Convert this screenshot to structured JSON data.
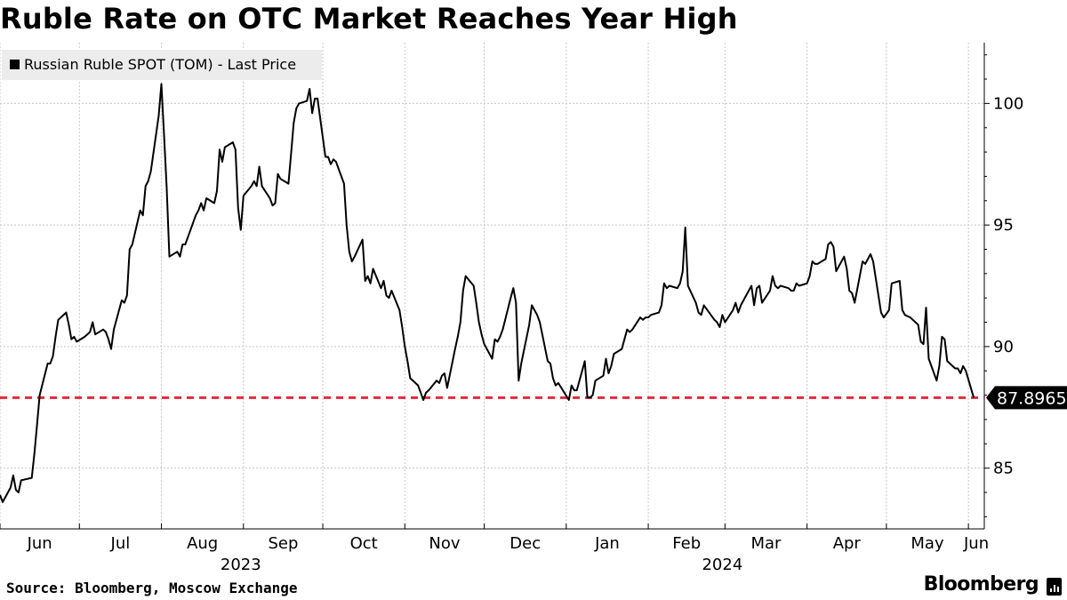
{
  "header": {
    "title": "Ruble Rate on OTC Market Reaches Year High"
  },
  "footer": {
    "source": "Source: Bloomberg, Moscow Exchange",
    "brand": "Bloomberg"
  },
  "chart_data": {
    "type": "line",
    "title": "Ruble Rate on OTC Market Reaches Year High",
    "xlabel": "",
    "ylabel": "",
    "legend": [
      "Russian Ruble SPOT (TOM) - Last Price"
    ],
    "legend_position": "top-left",
    "grid": true,
    "ylim": [
      82.5,
      102.5
    ],
    "yticks": [
      85,
      90,
      95,
      100
    ],
    "xlim": [
      "2023-06-01",
      "2024-06-07"
    ],
    "month_ticks": [
      {
        "date": "2023-06-01",
        "label": "Jun"
      },
      {
        "date": "2023-07-01",
        "label": "Jul"
      },
      {
        "date": "2023-08-01",
        "label": "Aug"
      },
      {
        "date": "2023-09-01",
        "label": "Sep"
      },
      {
        "date": "2023-10-01",
        "label": "Oct"
      },
      {
        "date": "2023-11-01",
        "label": "Nov"
      },
      {
        "date": "2023-12-01",
        "label": "Dec"
      },
      {
        "date": "2024-01-01",
        "label": "Jan"
      },
      {
        "date": "2024-02-01",
        "label": "Feb"
      },
      {
        "date": "2024-03-01",
        "label": "Mar"
      },
      {
        "date": "2024-04-01",
        "label": "Apr"
      },
      {
        "date": "2024-05-01",
        "label": "May"
      },
      {
        "date": "2024-06-01",
        "label": "Jun"
      }
    ],
    "year_labels": [
      {
        "date": "2023-08-31",
        "label": "2023"
      },
      {
        "date": "2024-02-29",
        "label": "2024"
      }
    ],
    "reference_line": {
      "value": 87.8965,
      "label": "87.8965",
      "color": "#e8283a",
      "style": "dashed"
    },
    "series": [
      {
        "name": "Russian Ruble SPOT (TOM) - Last Price",
        "color": "#000000",
        "points": [
          [
            "2023-06-01",
            83.9
          ],
          [
            "2023-06-02",
            83.6
          ],
          [
            "2023-06-05",
            84.2
          ],
          [
            "2023-06-06",
            84.7
          ],
          [
            "2023-06-07",
            84.1
          ],
          [
            "2023-06-08",
            84.0
          ],
          [
            "2023-06-09",
            84.5
          ],
          [
            "2023-06-13",
            84.6
          ],
          [
            "2023-06-14",
            85.6
          ],
          [
            "2023-06-15",
            86.8
          ],
          [
            "2023-06-16",
            88.0
          ],
          [
            "2023-06-19",
            89.3
          ],
          [
            "2023-06-20",
            89.3
          ],
          [
            "2023-06-21",
            89.6
          ],
          [
            "2023-06-22",
            90.4
          ],
          [
            "2023-06-23",
            91.1
          ],
          [
            "2023-06-26",
            91.4
          ],
          [
            "2023-06-27",
            90.9
          ],
          [
            "2023-06-28",
            90.3
          ],
          [
            "2023-06-29",
            90.4
          ],
          [
            "2023-06-30",
            90.2
          ],
          [
            "2023-07-03",
            90.4
          ],
          [
            "2023-07-04",
            90.5
          ],
          [
            "2023-07-05",
            90.6
          ],
          [
            "2023-07-06",
            91.0
          ],
          [
            "2023-07-07",
            90.5
          ],
          [
            "2023-07-10",
            90.7
          ],
          [
            "2023-07-11",
            90.6
          ],
          [
            "2023-07-12",
            90.3
          ],
          [
            "2023-07-13",
            89.9
          ],
          [
            "2023-07-14",
            90.7
          ],
          [
            "2023-07-17",
            91.9
          ],
          [
            "2023-07-18",
            91.8
          ],
          [
            "2023-07-19",
            92.1
          ],
          [
            "2023-07-20",
            94.0
          ],
          [
            "2023-07-21",
            94.2
          ],
          [
            "2023-07-24",
            95.6
          ],
          [
            "2023-07-25",
            95.4
          ],
          [
            "2023-07-26",
            96.6
          ],
          [
            "2023-07-27",
            96.8
          ],
          [
            "2023-07-28",
            97.2
          ],
          [
            "2023-07-31",
            99.5
          ],
          [
            "2023-08-01",
            100.8
          ],
          [
            "2023-08-02",
            98.7
          ],
          [
            "2023-08-03",
            96.5
          ],
          [
            "2023-08-04",
            93.7
          ],
          [
            "2023-08-07",
            93.9
          ],
          [
            "2023-08-08",
            93.7
          ],
          [
            "2023-08-09",
            94.2
          ],
          [
            "2023-08-10",
            94.2
          ],
          [
            "2023-08-11",
            94.5
          ],
          [
            "2023-08-14",
            95.4
          ],
          [
            "2023-08-15",
            95.6
          ],
          [
            "2023-08-16",
            95.9
          ],
          [
            "2023-08-17",
            95.6
          ],
          [
            "2023-08-18",
            96.1
          ],
          [
            "2023-08-21",
            95.9
          ],
          [
            "2023-08-22",
            96.4
          ],
          [
            "2023-08-23",
            98.1
          ],
          [
            "2023-08-24",
            97.6
          ],
          [
            "2023-08-25",
            98.2
          ],
          [
            "2023-08-28",
            98.4
          ],
          [
            "2023-08-29",
            98.1
          ],
          [
            "2023-08-30",
            95.7
          ],
          [
            "2023-08-31",
            94.8
          ],
          [
            "2023-09-01",
            96.2
          ],
          [
            "2023-09-04",
            96.6
          ],
          [
            "2023-09-05",
            96.8
          ],
          [
            "2023-09-06",
            96.6
          ],
          [
            "2023-09-07",
            97.4
          ],
          [
            "2023-09-08",
            96.6
          ],
          [
            "2023-09-11",
            96.1
          ],
          [
            "2023-09-12",
            95.8
          ],
          [
            "2023-09-13",
            95.9
          ],
          [
            "2023-09-14",
            97.1
          ],
          [
            "2023-09-15",
            96.9
          ],
          [
            "2023-09-18",
            96.7
          ],
          [
            "2023-09-19",
            97.9
          ],
          [
            "2023-09-20",
            99.2
          ],
          [
            "2023-09-21",
            99.8
          ],
          [
            "2023-09-22",
            100.0
          ],
          [
            "2023-09-25",
            100.1
          ],
          [
            "2023-09-26",
            100.6
          ],
          [
            "2023-09-27",
            99.6
          ],
          [
            "2023-09-28",
            100.2
          ],
          [
            "2023-09-29",
            100.2
          ],
          [
            "2023-10-02",
            97.8
          ],
          [
            "2023-10-03",
            97.8
          ],
          [
            "2023-10-04",
            97.5
          ],
          [
            "2023-10-05",
            97.7
          ],
          [
            "2023-10-06",
            97.6
          ],
          [
            "2023-10-09",
            96.7
          ],
          [
            "2023-10-10",
            95.0
          ],
          [
            "2023-10-11",
            93.9
          ],
          [
            "2023-10-12",
            93.5
          ],
          [
            "2023-10-13",
            93.7
          ],
          [
            "2023-10-16",
            94.4
          ],
          [
            "2023-10-17",
            92.7
          ],
          [
            "2023-10-18",
            92.9
          ],
          [
            "2023-10-19",
            92.6
          ],
          [
            "2023-10-20",
            93.2
          ],
          [
            "2023-10-23",
            92.4
          ],
          [
            "2023-10-24",
            92.7
          ],
          [
            "2023-10-25",
            92.1
          ],
          [
            "2023-10-26",
            92.0
          ],
          [
            "2023-10-27",
            92.3
          ],
          [
            "2023-10-30",
            91.5
          ],
          [
            "2023-10-31",
            90.8
          ],
          [
            "2023-11-01",
            90.0
          ],
          [
            "2023-11-02",
            89.4
          ],
          [
            "2023-11-03",
            88.7
          ],
          [
            "2023-11-06",
            88.4
          ],
          [
            "2023-11-07",
            88.1
          ],
          [
            "2023-11-08",
            87.8
          ],
          [
            "2023-11-09",
            88.1
          ],
          [
            "2023-11-10",
            88.2
          ],
          [
            "2023-11-13",
            88.6
          ],
          [
            "2023-11-14",
            88.5
          ],
          [
            "2023-11-15",
            88.8
          ],
          [
            "2023-11-16",
            88.9
          ],
          [
            "2023-11-17",
            88.3
          ],
          [
            "2023-11-20",
            89.9
          ],
          [
            "2023-11-21",
            90.4
          ],
          [
            "2023-11-22",
            91.0
          ],
          [
            "2023-11-23",
            92.3
          ],
          [
            "2023-11-24",
            92.9
          ],
          [
            "2023-11-27",
            92.5
          ],
          [
            "2023-11-28",
            91.8
          ],
          [
            "2023-11-29",
            91.0
          ],
          [
            "2023-11-30",
            90.5
          ],
          [
            "2023-12-01",
            90.1
          ],
          [
            "2023-12-04",
            89.5
          ],
          [
            "2023-12-05",
            90.3
          ],
          [
            "2023-12-06",
            90.2
          ],
          [
            "2023-12-07",
            90.4
          ],
          [
            "2023-12-08",
            90.7
          ],
          [
            "2023-12-11",
            92.0
          ],
          [
            "2023-12-12",
            92.4
          ],
          [
            "2023-12-13",
            91.8
          ],
          [
            "2023-12-14",
            88.6
          ],
          [
            "2023-12-15",
            89.3
          ],
          [
            "2023-12-18",
            90.9
          ],
          [
            "2023-12-19",
            91.7
          ],
          [
            "2023-12-20",
            91.5
          ],
          [
            "2023-12-21",
            91.3
          ],
          [
            "2023-12-22",
            91.0
          ],
          [
            "2023-12-25",
            89.4
          ],
          [
            "2023-12-26",
            89.3
          ],
          [
            "2023-12-27",
            88.7
          ],
          [
            "2023-12-28",
            88.4
          ],
          [
            "2023-12-29",
            88.5
          ],
          [
            "2024-01-02",
            87.8
          ],
          [
            "2024-01-03",
            88.4
          ],
          [
            "2024-01-04",
            88.2
          ],
          [
            "2024-01-05",
            88.2
          ],
          [
            "2024-01-08",
            89.4
          ],
          [
            "2024-01-09",
            87.9
          ],
          [
            "2024-01-10",
            87.9
          ],
          [
            "2024-01-11",
            88.0
          ],
          [
            "2024-01-12",
            88.6
          ],
          [
            "2024-01-15",
            88.8
          ],
          [
            "2024-01-16",
            89.5
          ],
          [
            "2024-01-17",
            88.9
          ],
          [
            "2024-01-18",
            89.2
          ],
          [
            "2024-01-19",
            89.7
          ],
          [
            "2024-01-22",
            89.9
          ],
          [
            "2024-01-23",
            90.3
          ],
          [
            "2024-01-24",
            90.7
          ],
          [
            "2024-01-25",
            90.6
          ],
          [
            "2024-01-26",
            90.7
          ],
          [
            "2024-01-29",
            91.2
          ],
          [
            "2024-01-30",
            91.1
          ],
          [
            "2024-01-31",
            91.2
          ],
          [
            "2024-02-01",
            91.2
          ],
          [
            "2024-02-02",
            91.3
          ],
          [
            "2024-02-05",
            91.4
          ],
          [
            "2024-02-06",
            91.7
          ],
          [
            "2024-02-07",
            92.6
          ],
          [
            "2024-02-08",
            92.4
          ],
          [
            "2024-02-09",
            92.5
          ],
          [
            "2024-02-12",
            92.4
          ],
          [
            "2024-02-13",
            92.6
          ],
          [
            "2024-02-14",
            93.1
          ],
          [
            "2024-02-15",
            94.9
          ],
          [
            "2024-02-16",
            92.5
          ],
          [
            "2024-02-19",
            91.8
          ],
          [
            "2024-02-20",
            91.4
          ],
          [
            "2024-02-21",
            91.3
          ],
          [
            "2024-02-22",
            91.7
          ],
          [
            "2024-02-26",
            91.1
          ],
          [
            "2024-02-27",
            91.0
          ],
          [
            "2024-02-28",
            90.8
          ],
          [
            "2024-02-29",
            91.3
          ],
          [
            "2024-03-01",
            91.0
          ],
          [
            "2024-03-04",
            91.5
          ],
          [
            "2024-03-05",
            91.8
          ],
          [
            "2024-03-06",
            91.4
          ],
          [
            "2024-03-07",
            91.7
          ],
          [
            "2024-03-11",
            92.5
          ],
          [
            "2024-03-12",
            91.7
          ],
          [
            "2024-03-13",
            92.4
          ],
          [
            "2024-03-14",
            92.5
          ],
          [
            "2024-03-15",
            91.8
          ],
          [
            "2024-03-18",
            92.3
          ],
          [
            "2024-03-19",
            92.9
          ],
          [
            "2024-03-20",
            92.5
          ],
          [
            "2024-03-21",
            92.4
          ],
          [
            "2024-03-22",
            92.5
          ],
          [
            "2024-03-25",
            92.4
          ],
          [
            "2024-03-26",
            92.3
          ],
          [
            "2024-03-27",
            92.3
          ],
          [
            "2024-03-28",
            92.6
          ],
          [
            "2024-03-29",
            92.5
          ],
          [
            "2024-04-01",
            92.6
          ],
          [
            "2024-04-02",
            92.9
          ],
          [
            "2024-04-03",
            93.5
          ],
          [
            "2024-04-04",
            93.4
          ],
          [
            "2024-04-05",
            93.4
          ],
          [
            "2024-04-08",
            93.6
          ],
          [
            "2024-04-09",
            94.2
          ],
          [
            "2024-04-10",
            94.3
          ],
          [
            "2024-04-11",
            94.1
          ],
          [
            "2024-04-12",
            93.1
          ],
          [
            "2024-04-15",
            93.7
          ],
          [
            "2024-04-16",
            93.2
          ],
          [
            "2024-04-17",
            92.3
          ],
          [
            "2024-04-18",
            92.2
          ],
          [
            "2024-04-19",
            91.8
          ],
          [
            "2024-04-22",
            93.5
          ],
          [
            "2024-04-23",
            93.4
          ],
          [
            "2024-04-24",
            93.6
          ],
          [
            "2024-04-25",
            93.8
          ],
          [
            "2024-04-26",
            93.5
          ],
          [
            "2024-04-29",
            91.4
          ],
          [
            "2024-04-30",
            91.2
          ],
          [
            "2024-05-02",
            91.5
          ],
          [
            "2024-05-03",
            92.6
          ],
          [
            "2024-05-06",
            92.7
          ],
          [
            "2024-05-07",
            91.5
          ],
          [
            "2024-05-08",
            91.3
          ],
          [
            "2024-05-10",
            91.2
          ],
          [
            "2024-05-13",
            90.9
          ],
          [
            "2024-05-14",
            90.2
          ],
          [
            "2024-05-15",
            90.1
          ],
          [
            "2024-05-16",
            91.6
          ],
          [
            "2024-05-17",
            89.5
          ],
          [
            "2024-05-20",
            88.6
          ],
          [
            "2024-05-21",
            89.2
          ],
          [
            "2024-05-22",
            90.4
          ],
          [
            "2024-05-23",
            90.3
          ],
          [
            "2024-05-24",
            89.4
          ],
          [
            "2024-05-27",
            89.1
          ],
          [
            "2024-05-28",
            89.1
          ],
          [
            "2024-05-29",
            88.9
          ],
          [
            "2024-05-30",
            89.2
          ],
          [
            "2024-05-31",
            89.0
          ],
          [
            "2024-06-03",
            87.9
          ]
        ]
      }
    ]
  }
}
